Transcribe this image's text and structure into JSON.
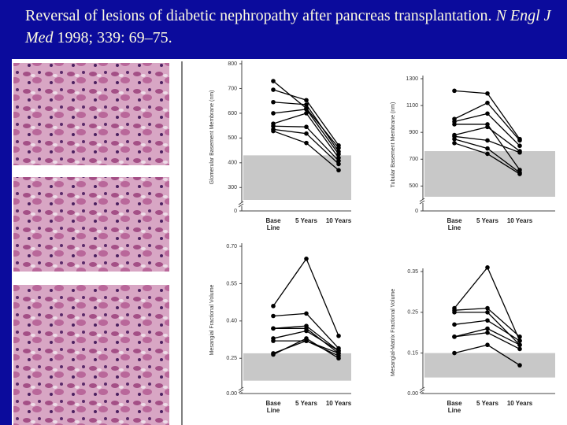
{
  "slide": {
    "title": "Reversal of lesions of diabetic nephropathy after pancreas transplantation.",
    "journal": "N Engl J Med",
    "citation": "1998; 339: 69–75."
  },
  "chart_data": [
    {
      "type": "line",
      "ylabel": "Glomerular Basement Membrane (nm)",
      "categories": [
        "Base Line",
        "5 Years",
        "10 Years"
      ],
      "ylim": [
        0,
        800
      ],
      "ybreak": 250,
      "yticks": [
        0,
        300,
        400,
        500,
        600,
        700,
        800
      ],
      "normal_range": [
        250,
        430
      ],
      "series": [
        {
          "color": "#000000",
          "values": [
            730,
            620,
            460
          ]
        },
        {
          "color": "#000000",
          "values": [
            695,
            653,
            470
          ]
        },
        {
          "color": "#000000",
          "values": [
            645,
            635,
            445
          ]
        },
        {
          "color": "#000000",
          "values": [
            600,
            616,
            435
          ]
        },
        {
          "color": "#000000",
          "values": [
            558,
            600,
            420
          ]
        },
        {
          "color": "#000000",
          "values": [
            548,
            545,
            408
          ]
        },
        {
          "color": "#000000",
          "values": [
            535,
            518,
            395
          ]
        },
        {
          "color": "#000000",
          "values": [
            528,
            480,
            370
          ]
        }
      ]
    },
    {
      "type": "line",
      "ylabel": "Tubular Basement Membrane (nm)",
      "categories": [
        "Base Line",
        "5 Years",
        "10 Years"
      ],
      "ylim": [
        0,
        1300
      ],
      "ybreak": 420,
      "yticks": [
        0,
        500,
        700,
        900,
        1100,
        1300
      ],
      "normal_range": [
        420,
        760
      ],
      "series": [
        {
          "color": "#000000",
          "values": [
            1210,
            1190,
            850
          ]
        },
        {
          "color": "#000000",
          "values": [
            1000,
            1120,
            840
          ]
        },
        {
          "color": "#000000",
          "values": [
            980,
            1040,
            800
          ]
        },
        {
          "color": "#000000",
          "values": [
            960,
            960,
            620
          ]
        },
        {
          "color": "#000000",
          "values": [
            880,
            940,
            760
          ]
        },
        {
          "color": "#000000",
          "values": [
            870,
            840,
            750
          ]
        },
        {
          "color": "#000000",
          "values": [
            850,
            780,
            600
          ]
        },
        {
          "color": "#000000",
          "values": [
            820,
            740,
            590
          ]
        }
      ]
    },
    {
      "type": "line",
      "ylabel": "Mesangial Fractional Volume",
      "categories": [
        "Base Line",
        "5 Years",
        "10 Years"
      ],
      "ylim": [
        0,
        0.7
      ],
      "ybreak": 0.14,
      "yticks": [
        {
          "value": 0,
          "label": "0.00"
        },
        {
          "value": 0.25,
          "label": "0.25"
        },
        {
          "value": 0.4,
          "label": "0.40"
        },
        {
          "value": 0.55,
          "label": "0.55"
        },
        {
          "value": 0.7,
          "label": "0.70"
        }
      ],
      "normal_range": [
        0.16,
        0.27
      ],
      "series": [
        {
          "color": "#000000",
          "values": [
            0.46,
            0.65,
            0.34
          ]
        },
        {
          "color": "#000000",
          "values": [
            0.42,
            0.43,
            0.29
          ]
        },
        {
          "color": "#000000",
          "values": [
            0.37,
            0.38,
            0.28
          ]
        },
        {
          "color": "#000000",
          "values": [
            0.37,
            0.37,
            0.27
          ]
        },
        {
          "color": "#000000",
          "values": [
            0.33,
            0.36,
            0.28
          ]
        },
        {
          "color": "#000000",
          "values": [
            0.32,
            0.32,
            0.27
          ]
        },
        {
          "color": "#000000",
          "values": [
            0.27,
            0.32,
            0.26
          ]
        },
        {
          "color": "#000000",
          "values": [
            0.265,
            0.33,
            0.25
          ]
        }
      ]
    },
    {
      "type": "line",
      "ylabel": "Mesangial-Matrix Fractional Volume",
      "categories": [
        "Base Line",
        "5 Years",
        "10 Years"
      ],
      "ylim": [
        0,
        0.35
      ],
      "ybreak": 0.07,
      "yticks": [
        {
          "value": 0,
          "label": "0.00"
        },
        {
          "value": 0.15,
          "label": "0.15"
        },
        {
          "value": 0.25,
          "label": "0.25"
        },
        {
          "value": 0.35,
          "label": "0.35"
        }
      ],
      "normal_range": [
        0.09,
        0.15
      ],
      "series": [
        {
          "color": "#000000",
          "values": [
            0.26,
            0.36,
            0.18
          ]
        },
        {
          "color": "#000000",
          "values": [
            0.255,
            0.26,
            0.19
          ]
        },
        {
          "color": "#000000",
          "values": [
            0.25,
            0.25,
            0.17
          ]
        },
        {
          "color": "#000000",
          "values": [
            0.22,
            0.23,
            0.18
          ]
        },
        {
          "color": "#000000",
          "values": [
            0.19,
            0.21,
            0.17
          ]
        },
        {
          "color": "#000000",
          "values": [
            0.19,
            0.2,
            0.16
          ]
        },
        {
          "color": "#000000",
          "values": [
            0.15,
            0.17,
            0.12
          ]
        }
      ]
    }
  ]
}
